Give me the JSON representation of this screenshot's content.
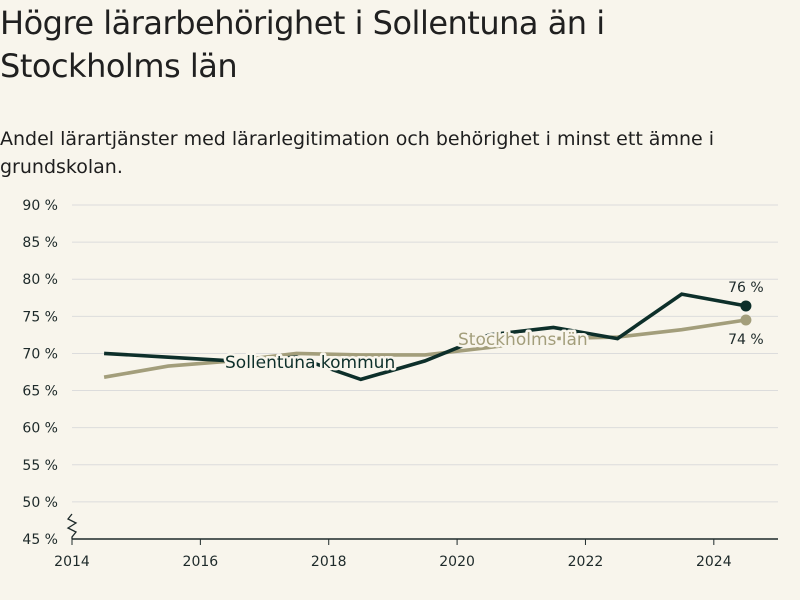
{
  "title": "Högre lärarbehörighet i Sollentuna än i Stockholms län",
  "subtitle": "Andel lärartjänster med lärarlegitimation och behörighet i minst ett ämne i grundskolan.",
  "colors": {
    "background": "#f8f5ec",
    "sollentuna": "#0d2f2a",
    "stockholm": "#a39e7b",
    "grid": "#dcdcdc",
    "axis": "#1e2a2a"
  },
  "chart_data": {
    "type": "line",
    "title": "Högre lärarbehörighet i Sollentuna än i Stockholms län",
    "subtitle": "Andel lärartjänster med lärarlegitimation och behörighet i minst ett ämne i grundskolan.",
    "x_ticks": [
      2014,
      2016,
      2018,
      2020,
      2022,
      2024
    ],
    "y_ticks": [
      45,
      50,
      55,
      60,
      65,
      70,
      75,
      80,
      85,
      90
    ],
    "y_tick_suffix": " %",
    "xlim": [
      2014,
      2025
    ],
    "ylim": [
      45,
      90
    ],
    "y_axis_break": true,
    "grid": true,
    "x": [
      2014.5,
      2015.5,
      2016.5,
      2017.5,
      2018.5,
      2019.5,
      2020.5,
      2021.5,
      2022.5,
      2023.5,
      2024.5
    ],
    "series": [
      {
        "name": "Sollentuna kommun",
        "color": "#0d2f2a",
        "values": [
          70,
          69.5,
          69,
          69.5,
          66.5,
          69,
          72.5,
          73.5,
          72,
          78,
          76.4
        ],
        "end_label": "76 %"
      },
      {
        "name": "Stockholms län",
        "color": "#a39e7b",
        "values": [
          66.8,
          68.3,
          69,
          70,
          69.8,
          69.8,
          70.8,
          72,
          72.2,
          73.2,
          74.5
        ],
        "end_label": "74 %"
      }
    ]
  }
}
